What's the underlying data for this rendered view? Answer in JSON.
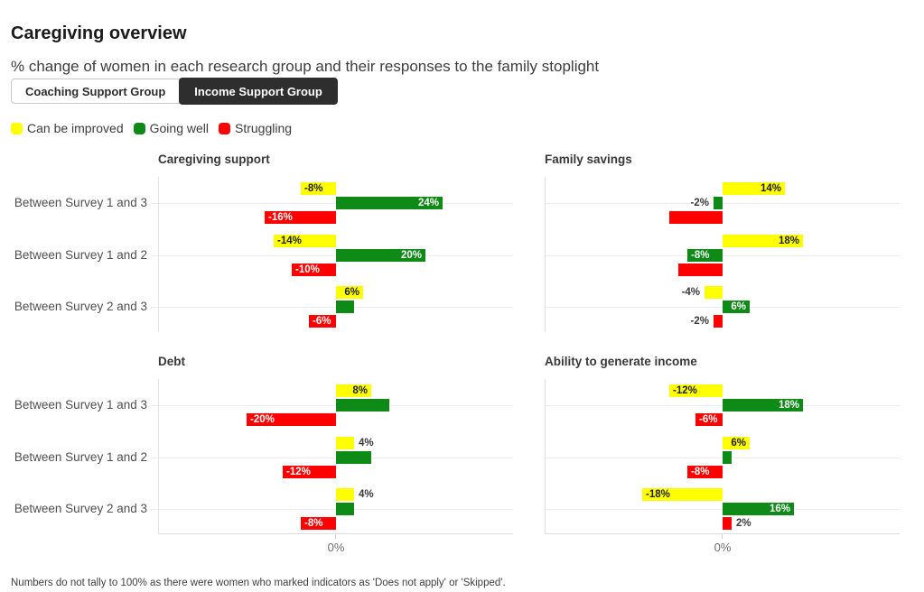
{
  "header": {
    "title": "Caregiving overview",
    "subtitle": "% change of women in each research group and their responses to the family stoplight"
  },
  "tabs": {
    "items": [
      {
        "label": "Coaching Support Group",
        "active": false
      },
      {
        "label": "Income Support Group",
        "active": true
      }
    ]
  },
  "legend": {
    "items": [
      {
        "label": "Can be improved",
        "color": "#ffff00"
      },
      {
        "label": "Going well",
        "color": "#0e8a16"
      },
      {
        "label": "Struggling",
        "color": "#ff0000"
      }
    ]
  },
  "footer": {
    "note": "Numbers do not tally to 100% as there were women who marked indicators as 'Does not apply' or 'Skipped'."
  },
  "chart_data": {
    "type": "bar",
    "orientation": "horizontal",
    "grid": true,
    "axis_label": "0%",
    "xlim": [
      -40,
      40
    ],
    "categories": [
      "Between Survey 1 and 3",
      "Between Survey 1 and 2",
      "Between Survey 2 and 3"
    ],
    "series_names": [
      "Can be improved",
      "Going well",
      "Struggling"
    ],
    "series_colors": {
      "Can be improved": "#ffff00",
      "Going well": "#0e8a16",
      "Struggling": "#ff0000"
    },
    "charts": [
      {
        "title": "Caregiving support",
        "series": [
          {
            "name": "Can be improved",
            "values": [
              -8,
              -14,
              6
            ],
            "labels": [
              "-8%",
              "-14%",
              "6%"
            ],
            "label_pos": [
              "inside",
              "inside",
              "inside"
            ]
          },
          {
            "name": "Going well",
            "values": [
              24,
              20,
              4
            ],
            "labels": [
              "24%",
              "20%",
              ""
            ],
            "label_pos": [
              "inside",
              "inside",
              "none"
            ]
          },
          {
            "name": "Struggling",
            "values": [
              -16,
              -10,
              -6
            ],
            "labels": [
              "-16%",
              "-10%",
              "-6%"
            ],
            "label_pos": [
              "inside",
              "inside",
              "inside"
            ]
          }
        ]
      },
      {
        "title": "Family savings",
        "series": [
          {
            "name": "Can be improved",
            "values": [
              14,
              18,
              -4
            ],
            "labels": [
              "14%",
              "18%",
              "-4%"
            ],
            "label_pos": [
              "inside",
              "inside",
              "outside"
            ]
          },
          {
            "name": "Going well",
            "values": [
              -2,
              -8,
              6
            ],
            "labels": [
              "-2%",
              "-8%",
              "6%"
            ],
            "label_pos": [
              "outside",
              "inside",
              "inside"
            ]
          },
          {
            "name": "Struggling",
            "values": [
              -12,
              -10,
              -2
            ],
            "labels": [
              "",
              "",
              "-2%"
            ],
            "label_pos": [
              "none",
              "none",
              "outside"
            ]
          }
        ]
      },
      {
        "title": "Debt",
        "series": [
          {
            "name": "Can be improved",
            "values": [
              8,
              4,
              4
            ],
            "labels": [
              "8%",
              "4%",
              "4%"
            ],
            "label_pos": [
              "inside",
              "outside",
              "outside"
            ]
          },
          {
            "name": "Going well",
            "values": [
              12,
              8,
              4
            ],
            "labels": [
              "",
              "",
              ""
            ],
            "label_pos": [
              "none",
              "none",
              "none"
            ]
          },
          {
            "name": "Struggling",
            "values": [
              -20,
              -12,
              -8
            ],
            "labels": [
              "-20%",
              "-12%",
              "-8%"
            ],
            "label_pos": [
              "inside",
              "inside",
              "inside"
            ]
          }
        ]
      },
      {
        "title": "Ability to generate income",
        "series": [
          {
            "name": "Can be improved",
            "values": [
              -12,
              6,
              -18
            ],
            "labels": [
              "-12%",
              "6%",
              "-18%"
            ],
            "label_pos": [
              "inside",
              "inside",
              "inside"
            ]
          },
          {
            "name": "Going well",
            "values": [
              18,
              2,
              16
            ],
            "labels": [
              "18%",
              "",
              "16%"
            ],
            "label_pos": [
              "inside",
              "none",
              "inside"
            ]
          },
          {
            "name": "Struggling",
            "values": [
              -6,
              -8,
              2
            ],
            "labels": [
              "-6%",
              "-8%",
              "2%"
            ],
            "label_pos": [
              "inside",
              "inside",
              "outside"
            ]
          }
        ]
      }
    ]
  }
}
